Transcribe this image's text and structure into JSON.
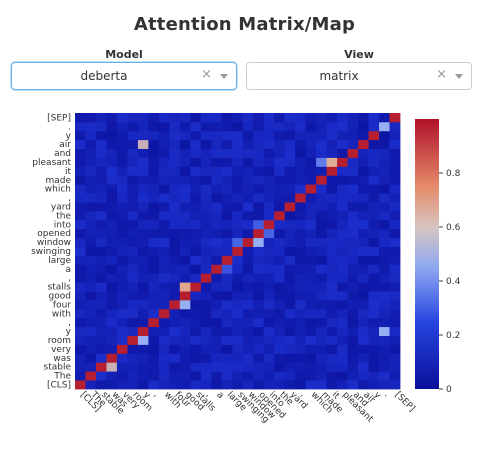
{
  "header": {
    "title": "Attention Matrix/Map"
  },
  "controls": {
    "model": {
      "label": "Model",
      "value": "deberta",
      "clear_icon": "×"
    },
    "view": {
      "label": "View",
      "value": "matrix",
      "clear_icon": "×"
    }
  },
  "chart_data": {
    "type": "heatmap",
    "tokens": [
      "[CLS]",
      "The",
      "stable",
      "was",
      "very",
      "room",
      "y",
      ",",
      "with",
      "four",
      "good",
      "stalls",
      ",",
      "a",
      "large",
      "swinging",
      "window",
      "opened",
      "into",
      "the",
      "yard",
      ",",
      "which",
      "made",
      "it",
      "pleasant",
      "and",
      "air",
      "y",
      ".",
      "[SEP]"
    ],
    "x_order": "tokens top-to-bottom reversed: x-axis reads [CLS] ... [SEP] left to right, y-axis reads [SEP] at top down to [CLS] at bottom",
    "colorscale": [
      "#0d0887",
      "#1f3fd4",
      "#6c8ff0",
      "#e9a07a",
      "#c73233",
      "#b0122a"
    ],
    "colorbar": {
      "ticks": [
        0,
        0.2,
        0.4,
        0.6,
        0.8
      ],
      "range": [
        0,
        1
      ]
    },
    "diagonal_value": 0.97,
    "highlights": [
      {
        "row": "stalls",
        "col": "good",
        "value": 0.62
      },
      {
        "row": "four",
        "col": "good",
        "value": 0.45
      },
      {
        "row": "window",
        "col": "opened",
        "value": 0.45
      },
      {
        "row": "window",
        "col": "swinging",
        "value": 0.3
      },
      {
        "row": "pleasant",
        "col": "it",
        "value": 0.6
      },
      {
        "row": "pleasant",
        "col": "made",
        "value": 0.35
      },
      {
        "row": "y",
        "col": ".",
        "value": 0.45
      },
      {
        "row": "air",
        "col": "y",
        "value": 0.55
      },
      {
        "row": ".",
        "col": ".",
        "value": 0.45
      },
      {
        "row": "stable",
        "col": "was",
        "value": 0.55
      },
      {
        "row": "room",
        "col": "y",
        "value": 0.45
      },
      {
        "row": "opened",
        "col": "into",
        "value": 0.3
      },
      {
        "row": "into",
        "col": "opened",
        "value": 0.28
      },
      {
        "row": "a",
        "col": "large",
        "value": 0.25
      }
    ],
    "background_value": 0.08
  }
}
